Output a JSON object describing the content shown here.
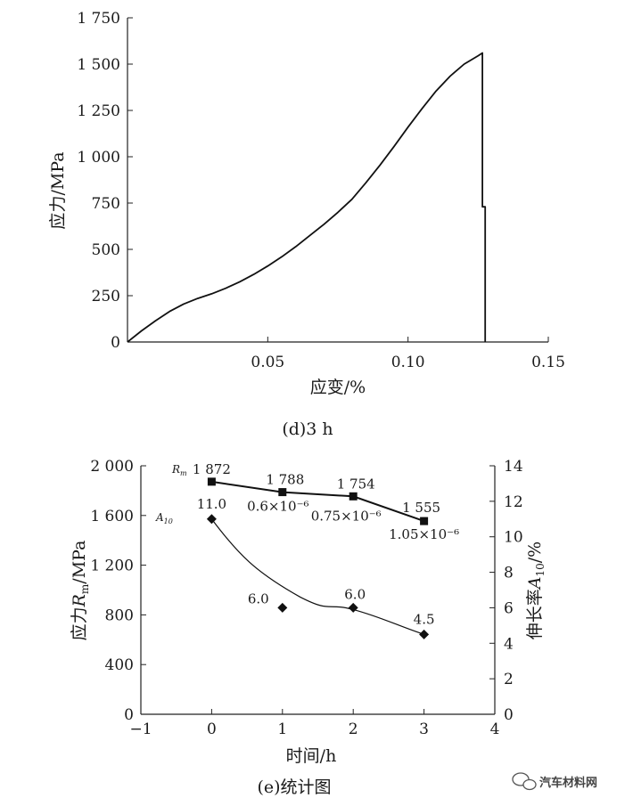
{
  "chart_data": [
    {
      "type": "line",
      "caption": "(d)3 h",
      "xlabel": "应变/%",
      "ylabel": "应力/MPa",
      "xlim": [
        0,
        0.15
      ],
      "ylim": [
        0,
        1750
      ],
      "x_ticks": [
        0.05,
        0.1,
        0.15
      ],
      "x_tick_labels": [
        "0.05",
        "0.10",
        "0.15"
      ],
      "y_ticks": [
        0,
        250,
        500,
        750,
        1000,
        1250,
        1500,
        1750
      ],
      "y_tick_labels": [
        "0",
        "250",
        "500",
        "750",
        "1 000",
        "1 250",
        "1 500",
        "1 750"
      ],
      "grid": false,
      "series": [
        {
          "x": [
            0,
            0.005,
            0.01,
            0.015,
            0.02,
            0.025,
            0.03,
            0.035,
            0.04,
            0.045,
            0.05,
            0.055,
            0.06,
            0.065,
            0.07,
            0.075,
            0.08,
            0.085,
            0.09,
            0.095,
            0.1,
            0.105,
            0.11,
            0.115,
            0.12,
            0.125,
            0.1265,
            0.1265,
            0.1275,
            0.1275
          ],
          "y": [
            0,
            60,
            115,
            165,
            205,
            235,
            260,
            290,
            325,
            365,
            410,
            460,
            515,
            575,
            635,
            700,
            770,
            860,
            955,
            1055,
            1160,
            1260,
            1355,
            1435,
            1500,
            1545,
            1560,
            730,
            730,
            0
          ]
        }
      ]
    },
    {
      "type": "scatter",
      "caption": "(e)统计图",
      "xlabel": "时间/h",
      "ylabel_left": "应力",
      "ylabel_left_var": "R",
      "ylabel_left_sub": "m",
      "ylabel_left_unit": "/MPa",
      "ylabel_right": "伸长率",
      "ylabel_right_var": "A",
      "ylabel_right_sub": "10",
      "ylabel_right_unit": "/%",
      "xlim": [
        -1,
        4
      ],
      "ylim_left": [
        0,
        2000
      ],
      "ylim_right": [
        0,
        14
      ],
      "x_ticks": [
        -1,
        0,
        1,
        2,
        3,
        4
      ],
      "x_tick_labels": [
        "−1",
        "0",
        "1",
        "2",
        "3",
        "4"
      ],
      "y_left_ticks": [
        0,
        400,
        800,
        1200,
        1600,
        2000
      ],
      "y_left_tick_labels": [
        "0",
        "400",
        "800",
        "1 200",
        "1 600",
        "2 000"
      ],
      "y_right_ticks": [
        0,
        2,
        4,
        6,
        8,
        10,
        12,
        14
      ],
      "y_right_tick_labels": [
        "0",
        "2",
        "4",
        "6",
        "8",
        "10",
        "12",
        "14"
      ],
      "grid": false,
      "series": [
        {
          "name": "R",
          "name_sub": "m",
          "marker": "square",
          "axis": "left",
          "x": [
            0,
            1,
            2,
            3
          ],
          "y": [
            1872,
            1788,
            1754,
            1555
          ],
          "value_labels": [
            "1 872",
            "1 788",
            "1 754",
            "1 555"
          ],
          "annotations": [
            "",
            "0.6×10⁻⁶",
            "0.75×10⁻⁶",
            "1.05×10⁻⁶"
          ]
        },
        {
          "name": "A",
          "name_sub": "10",
          "marker": "diamond",
          "axis": "right",
          "x": [
            0,
            1,
            2,
            3
          ],
          "y": [
            11.0,
            6.0,
            6.0,
            4.5
          ],
          "value_labels": [
            "11.0",
            "6.0",
            "6.0",
            "4.5"
          ]
        }
      ]
    }
  ],
  "watermark": "汽车材料网"
}
